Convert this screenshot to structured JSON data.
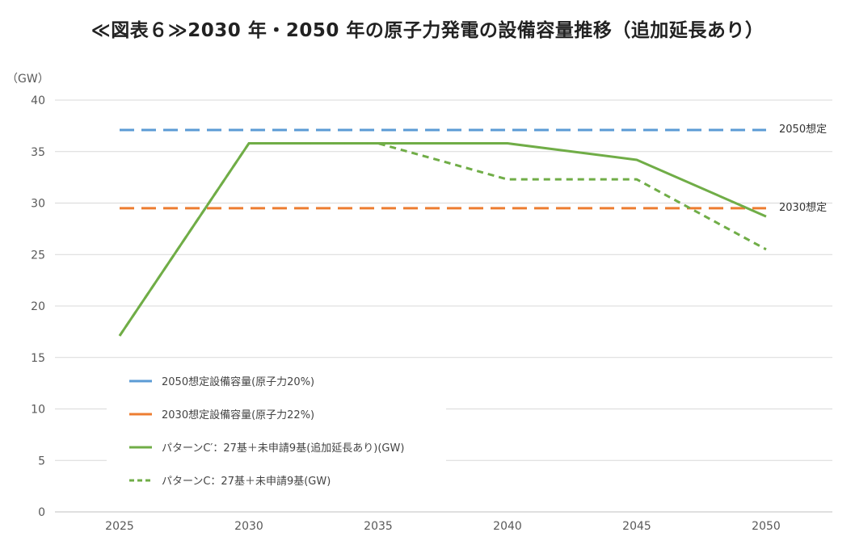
{
  "chart_data": {
    "type": "line",
    "title": "≪図表６≫2030 年・2050 年の原子力発電の設備容量推移（追加延長あり）",
    "ylabel": "（GW）",
    "xlabel": "",
    "x": [
      2025,
      2030,
      2035,
      2040,
      2045,
      2050
    ],
    "xlim": [
      2025,
      2050
    ],
    "ylim": [
      0,
      40
    ],
    "yticks": [
      0,
      5,
      10,
      15,
      20,
      25,
      30,
      35,
      40
    ],
    "grid": "horizontal",
    "legend_position": "bottom-left",
    "series": [
      {
        "name": "2050想定設備容量(原子力20%)",
        "values": [
          37.1,
          37.1,
          37.1,
          37.1,
          37.1,
          37.1
        ],
        "color": "#5B9BD5",
        "style": "dashed"
      },
      {
        "name": "2030想定設備容量(原子力22%)",
        "values": [
          29.5,
          29.5,
          29.5,
          29.5,
          29.5,
          29.5
        ],
        "color": "#ED7D31",
        "style": "dashed"
      },
      {
        "name": "パターンC′：27基＋未申請9基(追加延長あり)(GW)",
        "values": [
          17.1,
          35.8,
          35.8,
          35.8,
          34.2,
          28.7
        ],
        "color": "#70AD47",
        "style": "solid"
      },
      {
        "name": "パターンC：27基＋未申請9基(GW)",
        "values": [
          17.1,
          35.8,
          35.8,
          32.3,
          32.3,
          25.5
        ],
        "color": "#70AD47",
        "style": "dotted"
      }
    ],
    "annotations": [
      {
        "text": "2050想定",
        "y": 37.1
      },
      {
        "text": "2030想定",
        "y": 29.5
      }
    ]
  }
}
